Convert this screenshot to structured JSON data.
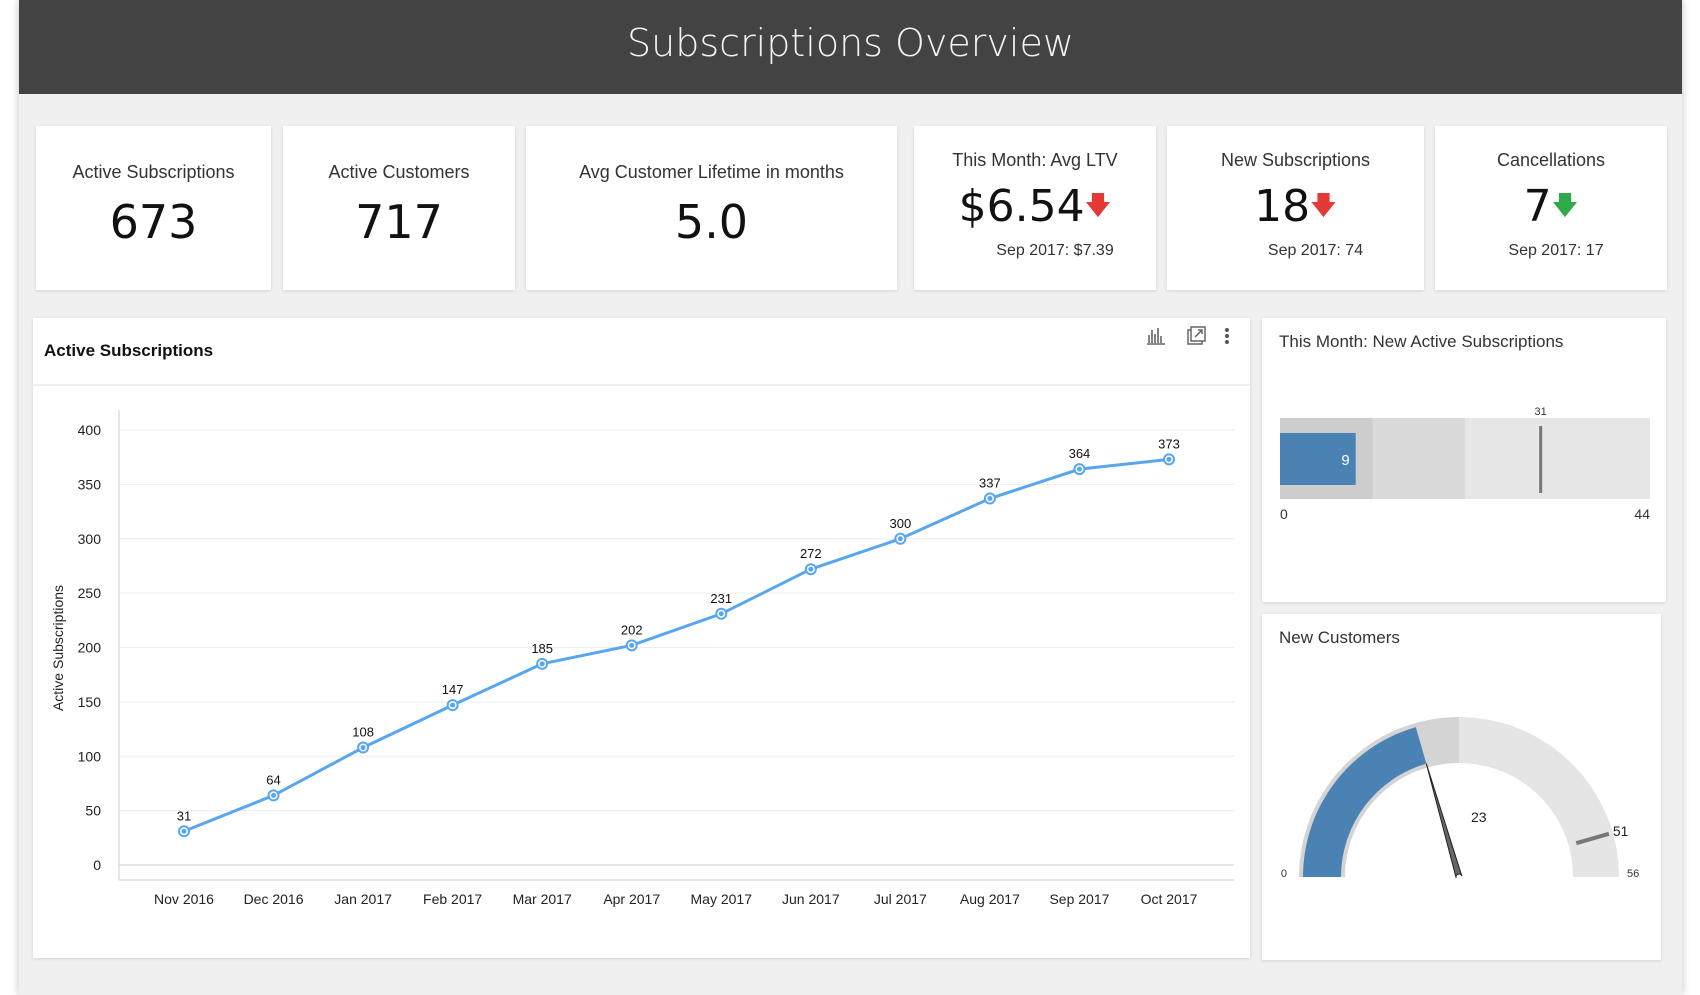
{
  "header": {
    "title": "Subscriptions Overview"
  },
  "kpis": [
    {
      "label": "Active Subscriptions",
      "value": "673"
    },
    {
      "label": "Active Customers",
      "value": "717"
    },
    {
      "label": "Avg Customer Lifetime in months",
      "value": "5.0"
    },
    {
      "label": "This Month: Avg LTV",
      "value": "$6.54",
      "trend": "down",
      "trend_color": "#e53935",
      "compare": "Sep 2017: $7.39"
    },
    {
      "label": "New Subscriptions",
      "value": "18",
      "trend": "down",
      "trend_color": "#e53935",
      "compare": "Sep 2017: 74"
    },
    {
      "label": "Cancellations",
      "value": "7",
      "trend": "down",
      "trend_color": "#2eaa4a",
      "compare": "Sep 2017: 17"
    }
  ],
  "main_panel": {
    "title": "Active Subscriptions",
    "icons": [
      "bar-chart-icon",
      "open-external-icon",
      "more-vertical-icon"
    ]
  },
  "chart_data": [
    {
      "type": "line",
      "title": "Active Subscriptions",
      "xlabel": "",
      "ylabel": "Active Subscriptions",
      "categories": [
        "Nov 2016",
        "Dec 2016",
        "Jan 2017",
        "Feb 2017",
        "Mar 2017",
        "Apr 2017",
        "May 2017",
        "Jun 2017",
        "Jul 2017",
        "Aug 2017",
        "Sep 2017",
        "Oct 2017"
      ],
      "values": [
        31,
        64,
        108,
        147,
        185,
        202,
        231,
        272,
        300,
        337,
        364,
        373
      ],
      "ylim": [
        0,
        400
      ],
      "yticks": [
        0,
        50,
        100,
        150,
        200,
        250,
        300,
        350,
        400
      ],
      "grid": true,
      "color": "#58a6f0",
      "data_labels": true
    },
    {
      "type": "bullet",
      "title": "This Month: New Active Subscriptions",
      "value": 9,
      "target": 31,
      "min": 0,
      "max": 44,
      "bands": [
        11,
        22,
        44
      ],
      "color": "#4a83b3"
    },
    {
      "type": "gauge",
      "title": "New Customers",
      "value": 23,
      "target": 51,
      "min": 0,
      "max": 56,
      "color": "#4a83b3"
    }
  ]
}
